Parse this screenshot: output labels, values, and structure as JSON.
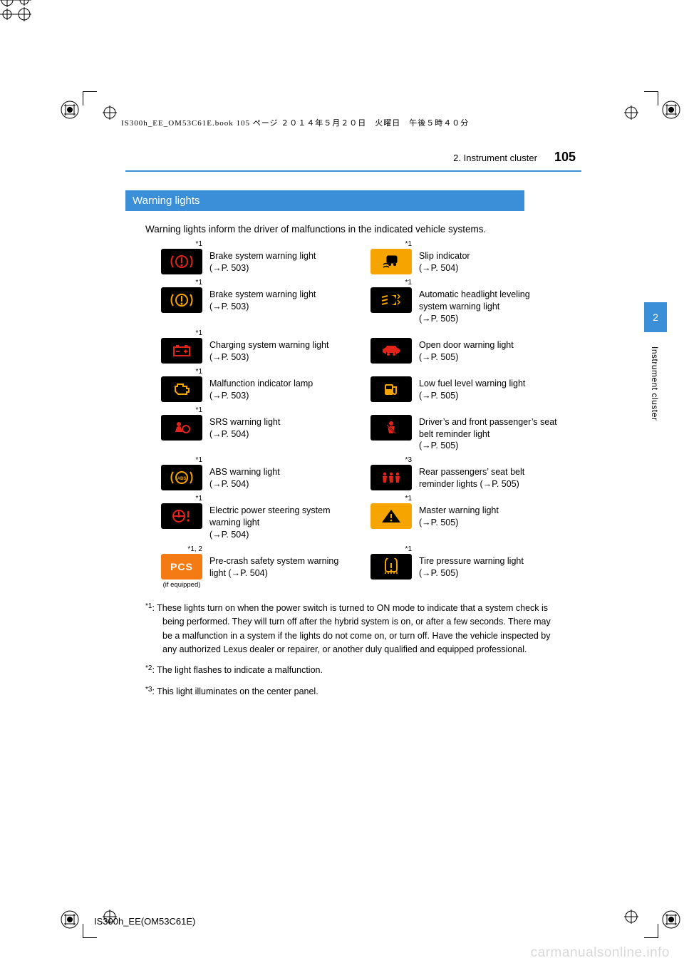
{
  "print_header": "IS300h_EE_OM53C61E.book  105 ページ  ２０１４年５月２０日　火曜日　午後５時４０分",
  "running_head": {
    "section": "2. Instrument cluster",
    "page": "105"
  },
  "side_tab": {
    "num": "2",
    "label": "Instrument cluster"
  },
  "heading": "Warning lights",
  "intro": "Warning lights inform the driver of malfunctions in the indicated vehicle systems.",
  "rows": [
    {
      "left": {
        "sup": "*1",
        "icon": "brake-red",
        "text": "Brake system warning light",
        "ref": "(→P. 503)"
      },
      "right": {
        "sup": "*1",
        "icon": "slip",
        "text": "Slip indicator",
        "ref": "(→P. 504)"
      }
    },
    {
      "left": {
        "sup": "*1",
        "icon": "brake-amber",
        "text": "Brake system warning light",
        "ref": "(→P. 503)"
      },
      "right": {
        "sup": "*1",
        "icon": "headlight-level",
        "text": "Automatic headlight leveling system warning light",
        "ref": "(→P. 505)"
      }
    },
    {
      "left": {
        "sup": "*1",
        "icon": "battery",
        "text": "Charging system warning light",
        "ref": "(→P. 503)",
        "inline_ref": true
      },
      "right": {
        "sup": "",
        "icon": "door",
        "text": "Open door warning light",
        "ref": "(→P. 505)"
      }
    },
    {
      "left": {
        "sup": "*1",
        "icon": "engine",
        "text": "Malfunction indicator lamp",
        "ref": "(→P. 503)",
        "inline_ref": true
      },
      "right": {
        "sup": "",
        "icon": "fuel",
        "text": "Low fuel level warning light",
        "ref": "(→P. 505)"
      }
    },
    {
      "left": {
        "sup": "*1",
        "icon": "srs",
        "text": "SRS warning light",
        "ref": "(→P. 504)"
      },
      "right": {
        "sup": "",
        "icon": "seatbelt-front",
        "text": "Driver’s and front passenger’s seat belt reminder light",
        "ref": "(→P. 505)"
      }
    },
    {
      "left": {
        "sup": "*1",
        "icon": "abs",
        "text": "ABS warning light",
        "ref": "(→P. 504)"
      },
      "right": {
        "sup": "*3",
        "icon": "seatbelt-rear",
        "text": "Rear passengers’ seat belt reminder lights",
        "ref": "(→P. 505)",
        "inline_ref": true
      }
    },
    {
      "left": {
        "sup": "*1",
        "icon": "eps",
        "text": "Electric power steering system warning light",
        "ref": "(→P. 504)"
      },
      "right": {
        "sup": "*1",
        "icon": "master",
        "text": "Master warning light",
        "ref": "(→P. 505)"
      }
    },
    {
      "left": {
        "sup": "*1, 2",
        "icon": "pcs",
        "text": "Pre-crash safety system warning light",
        "ref": "(→P. 504)",
        "inline_ref": true,
        "sub": "(if equipped)"
      },
      "right": {
        "sup": "*1",
        "icon": "tpms",
        "text": "Tire pressure warning light",
        "ref": "(→P. 505)"
      }
    }
  ],
  "footnotes": {
    "f1_mark": "*1",
    "f1": ": These lights turn on when the power switch is turned to ON mode to indicate that a system check is being performed. They will turn off after the hybrid system is on, or after a few seconds. There may be a malfunction in a system if the lights do not come on, or turn off. Have the vehicle inspected by any authorized Lexus dealer or repairer, or another duly qualified and equipped professional.",
    "f2_mark": "*2",
    "f2": ": The light flashes to indicate a malfunction.",
    "f3_mark": "*3",
    "f3": ": This light illuminates on the center panel."
  },
  "footer_code": "IS300h_EE(OM53C61E)",
  "watermark": "carmanualsonline.info",
  "colors": {
    "accent": "#3a8fd8",
    "red": "#e2231a",
    "amber": "#f5a400",
    "orange": "#f47a13",
    "icon_bg": "#000000",
    "watermark": "#d9d9d9"
  }
}
